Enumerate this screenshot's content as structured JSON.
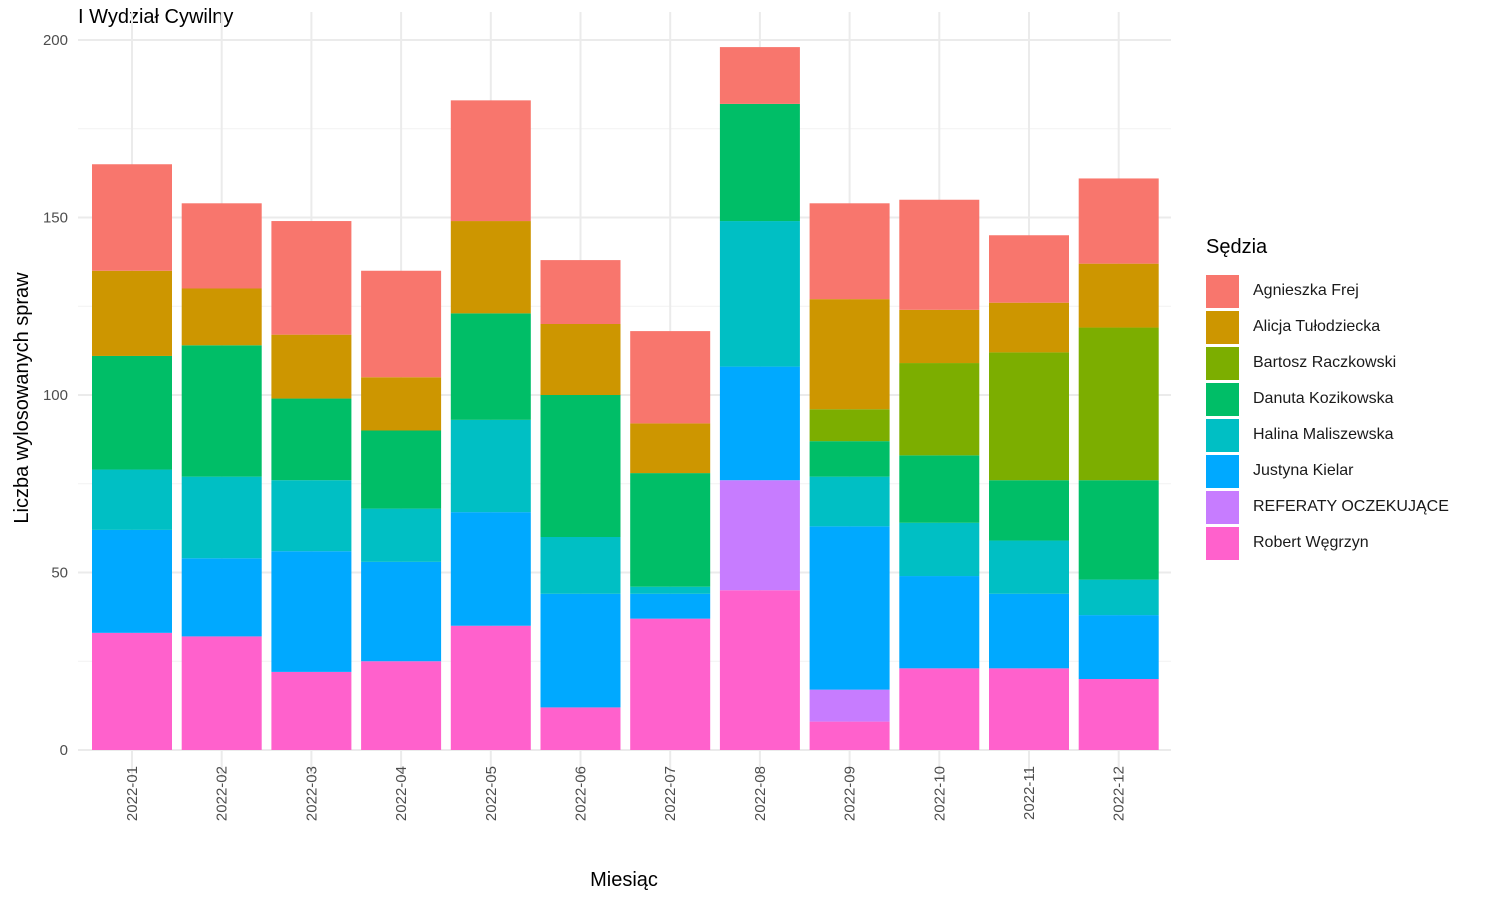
{
  "chart_data": {
    "type": "bar",
    "stacked": true,
    "title": "I Wydział Cywilny",
    "xlabel": "Miesiąc",
    "ylabel": "Liczba wylosowanych spraw",
    "ylim": [
      0,
      200
    ],
    "yticks": [
      0,
      50,
      100,
      150,
      200
    ],
    "grid": true,
    "legend_title": "Sędzia",
    "legend_position": "right",
    "categories": [
      "2022-01",
      "2022-02",
      "2022-03",
      "2022-04",
      "2022-05",
      "2022-06",
      "2022-07",
      "2022-08",
      "2022-09",
      "2022-10",
      "2022-11",
      "2022-12"
    ],
    "series": [
      {
        "name": "Robert Węgrzyn",
        "color": "#FF61CC",
        "values": [
          33,
          32,
          22,
          25,
          35,
          12,
          37,
          45,
          8,
          23,
          23,
          20
        ]
      },
      {
        "name": "REFERATY OCZEKUJĄCE",
        "color": "#C77CFF",
        "values": [
          0,
          0,
          0,
          0,
          0,
          0,
          0,
          31,
          9,
          0,
          0,
          0
        ]
      },
      {
        "name": "Justyna Kielar",
        "color": "#00A9FF",
        "values": [
          29,
          22,
          34,
          28,
          32,
          32,
          7,
          32,
          46,
          26,
          21,
          18
        ]
      },
      {
        "name": "Halina Maliszewska",
        "color": "#00BFC4",
        "values": [
          17,
          23,
          20,
          15,
          26,
          16,
          2,
          41,
          14,
          15,
          15,
          10
        ]
      },
      {
        "name": "Danuta Kozikowska",
        "color": "#00BE67",
        "values": [
          32,
          37,
          23,
          22,
          30,
          40,
          32,
          33,
          10,
          19,
          17,
          28
        ]
      },
      {
        "name": "Bartosz Raczkowski",
        "color": "#7CAE00",
        "values": [
          0,
          0,
          0,
          0,
          0,
          0,
          0,
          0,
          9,
          26,
          36,
          43
        ]
      },
      {
        "name": "Alicja Tułodziecka",
        "color": "#CD9600",
        "values": [
          24,
          16,
          18,
          15,
          26,
          20,
          14,
          0,
          31,
          15,
          14,
          18
        ]
      },
      {
        "name": "Agnieszka Frej",
        "color": "#F8766D",
        "values": [
          30,
          24,
          32,
          30,
          34,
          18,
          26,
          16,
          27,
          31,
          19,
          24
        ]
      }
    ],
    "legend_order": [
      "Agnieszka Frej",
      "Alicja Tułodziecka",
      "Bartosz Raczkowski",
      "Danuta Kozikowska",
      "Halina Maliszewska",
      "Justyna Kielar",
      "REFERATY OCZEKUJĄCE",
      "Robert Węgrzyn"
    ]
  }
}
